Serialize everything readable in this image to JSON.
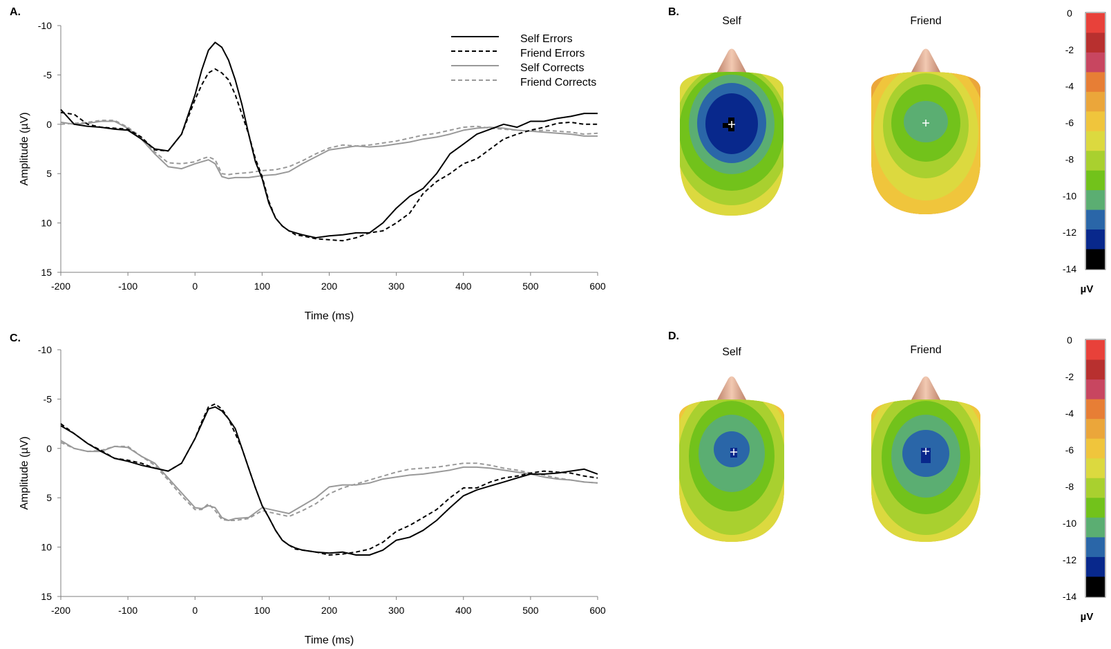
{
  "panel_labels": {
    "a": "A.",
    "b": "B.",
    "c": "C.",
    "d": "D."
  },
  "topo_labels": {
    "b_left": "Self",
    "b_right": "Friend",
    "d_left": "Self",
    "d_right": "Friend"
  },
  "colorbar": {
    "unit": "µV",
    "tick_labels": [
      "0",
      "-2",
      "-4",
      "-6",
      "-8",
      "-10",
      "-12",
      "-14"
    ],
    "colors": [
      "#e8413a",
      "#b8302f",
      "#c84660",
      "#e77e35",
      "#eba63a",
      "#f0c53c",
      "#dcd93f",
      "#a9d02f",
      "#72c21b",
      "#5bae72",
      "#2a66a8",
      "#08288c",
      "#000000"
    ]
  },
  "line_styles": [
    {
      "color": "#000000",
      "dash": "none",
      "width": 2
    },
    {
      "color": "#000000",
      "dash": "6,4",
      "width": 2
    },
    {
      "color": "#999999",
      "dash": "none",
      "width": 2
    },
    {
      "color": "#999999",
      "dash": "6,4",
      "width": 2
    }
  ],
  "chart_data": [
    {
      "type": "line",
      "panel": "A.",
      "xlabel": "Time (ms)",
      "ylabel": "Amplitude (µV)",
      "xlim": [
        -200,
        600
      ],
      "ylim": [
        15,
        -10
      ],
      "y_inverted": true,
      "xticks": [
        "-200",
        "-100",
        "0",
        "100",
        "200",
        "300",
        "400",
        "500",
        "600"
      ],
      "yticks": [
        "-10",
        "-5",
        "0",
        "5",
        "10",
        "15"
      ],
      "legend": [
        "Self Errors",
        "Friend Errors",
        "Self Corrects",
        "Friend Corrects"
      ],
      "legend_position": "top-right",
      "series": [
        {
          "name": "Self Errors",
          "x": [
            -200,
            -180,
            -160,
            -140,
            -120,
            -100,
            -80,
            -60,
            -40,
            -20,
            0,
            10,
            20,
            30,
            40,
            50,
            60,
            70,
            80,
            90,
            100,
            110,
            120,
            130,
            140,
            150,
            160,
            180,
            200,
            220,
            240,
            260,
            280,
            300,
            320,
            340,
            360,
            380,
            400,
            420,
            440,
            460,
            480,
            500,
            520,
            540,
            560,
            580,
            600
          ],
          "y": [
            -1.5,
            0,
            0.2,
            0.3,
            0.5,
            0.6,
            1.5,
            2.5,
            2.7,
            1,
            -3,
            -5.5,
            -7.5,
            -8.3,
            -7.8,
            -6.5,
            -4.5,
            -2,
            1,
            3.8,
            5.5,
            8,
            9.5,
            10.3,
            10.8,
            11,
            11.2,
            11.5,
            11.3,
            11.2,
            11,
            11,
            10,
            8.5,
            7.3,
            6.5,
            5,
            3,
            2,
            1,
            0.5,
            0,
            0.3,
            -0.3,
            -0.3,
            -0.6,
            -0.8,
            -1.1,
            -1.1
          ]
        },
        {
          "name": "Friend Errors",
          "x": [
            -200,
            -180,
            -160,
            -140,
            -120,
            -100,
            -80,
            -60,
            -40,
            -20,
            0,
            10,
            20,
            30,
            40,
            50,
            60,
            70,
            80,
            90,
            100,
            110,
            120,
            130,
            140,
            150,
            160,
            180,
            200,
            220,
            240,
            260,
            280,
            300,
            320,
            340,
            360,
            380,
            400,
            420,
            440,
            460,
            480,
            500,
            520,
            540,
            560,
            580,
            600
          ],
          "y": [
            -1.2,
            -1,
            0,
            0.3,
            0.4,
            0.5,
            1.3,
            2.6,
            2.7,
            1,
            -2.5,
            -4,
            -5.2,
            -5.6,
            -5.2,
            -4.5,
            -3,
            -1,
            1,
            3.5,
            5.3,
            7.8,
            9.5,
            10.3,
            10.8,
            11.2,
            11.3,
            11.6,
            11.7,
            11.8,
            11.5,
            11,
            10.8,
            10,
            9,
            7,
            5.8,
            5,
            4,
            3.5,
            2.5,
            1.5,
            1,
            0.6,
            0.3,
            -0.1,
            -0.2,
            0,
            0
          ]
        },
        {
          "name": "Self Corrects",
          "x": [
            -200,
            -180,
            -160,
            -140,
            -120,
            -100,
            -80,
            -60,
            -40,
            -20,
            0,
            10,
            20,
            30,
            40,
            50,
            60,
            80,
            100,
            120,
            140,
            160,
            180,
            200,
            220,
            240,
            260,
            280,
            300,
            320,
            340,
            360,
            380,
            400,
            420,
            440,
            460,
            480,
            500,
            520,
            540,
            560,
            580,
            600
          ],
          "y": [
            -0.2,
            0,
            -0.1,
            -0.3,
            -0.3,
            0.4,
            1.5,
            3,
            4.3,
            4.5,
            4,
            3.8,
            3.6,
            4,
            5.3,
            5.5,
            5.4,
            5.4,
            5.2,
            5.1,
            4.8,
            4,
            3.3,
            2.6,
            2.4,
            2.2,
            2.3,
            2.2,
            2,
            1.8,
            1.5,
            1.3,
            1,
            0.6,
            0.4,
            0.3,
            0.4,
            0.6,
            0.7,
            0.8,
            0.9,
            1,
            1.2,
            1.2
          ]
        },
        {
          "name": "Friend Corrects",
          "x": [
            -200,
            -180,
            -160,
            -140,
            -120,
            -100,
            -80,
            -60,
            -40,
            -20,
            0,
            10,
            20,
            30,
            40,
            50,
            60,
            80,
            100,
            120,
            140,
            160,
            180,
            200,
            220,
            240,
            260,
            280,
            300,
            320,
            340,
            360,
            380,
            400,
            420,
            440,
            460,
            480,
            500,
            520,
            540,
            560,
            580,
            600
          ],
          "y": [
            0,
            -0.1,
            -0.2,
            -0.4,
            -0.4,
            0.3,
            1.3,
            2.8,
            3.9,
            4,
            3.8,
            3.5,
            3.3,
            3.6,
            5,
            5.1,
            5,
            4.9,
            4.7,
            4.6,
            4.3,
            3.7,
            3,
            2.4,
            2.1,
            2.2,
            2.1,
            1.9,
            1.7,
            1.4,
            1.1,
            0.9,
            0.6,
            0.3,
            0.2,
            0.4,
            0.5,
            0.6,
            0.7,
            0.6,
            0.7,
            0.8,
            1,
            0.9
          ]
        }
      ]
    },
    {
      "type": "line",
      "panel": "C.",
      "xlabel": "Time (ms)",
      "ylabel": "Amplitude (µV)",
      "xlim": [
        -200,
        600
      ],
      "ylim": [
        15,
        -10
      ],
      "y_inverted": true,
      "xticks": [
        "-200",
        "-100",
        "0",
        "100",
        "200",
        "300",
        "400",
        "500",
        "600"
      ],
      "yticks": [
        "-10",
        "-5",
        "0",
        "5",
        "10",
        "15"
      ],
      "series": [
        {
          "name": "Self Errors",
          "x": [
            -200,
            -180,
            -160,
            -140,
            -120,
            -100,
            -80,
            -60,
            -40,
            -20,
            0,
            10,
            20,
            30,
            40,
            50,
            60,
            70,
            80,
            90,
            100,
            110,
            120,
            130,
            140,
            150,
            160,
            180,
            200,
            220,
            240,
            260,
            280,
            300,
            320,
            340,
            360,
            380,
            400,
            420,
            440,
            460,
            480,
            500,
            520,
            540,
            560,
            580,
            600
          ],
          "y": [
            -2.3,
            -1.5,
            -0.5,
            0.3,
            1,
            1.3,
            1.7,
            2,
            2.3,
            1.5,
            -1,
            -2.5,
            -4,
            -4.2,
            -3.8,
            -3,
            -2,
            0,
            2,
            4,
            5.8,
            7,
            8.3,
            9.3,
            9.8,
            10.1,
            10.3,
            10.5,
            10.6,
            10.5,
            10.8,
            10.8,
            10.3,
            9.3,
            9,
            8.3,
            7.3,
            6,
            4.8,
            4.2,
            3.8,
            3.4,
            3,
            2.6,
            2.6,
            2.5,
            2.3,
            2.1,
            2.6
          ]
        },
        {
          "name": "Friend Errors",
          "x": [
            -200,
            -180,
            -160,
            -140,
            -120,
            -100,
            -80,
            -60,
            -40,
            -20,
            0,
            10,
            20,
            30,
            40,
            50,
            60,
            70,
            80,
            90,
            100,
            110,
            120,
            130,
            140,
            150,
            160,
            180,
            200,
            220,
            240,
            260,
            280,
            300,
            320,
            340,
            360,
            380,
            400,
            420,
            440,
            460,
            480,
            500,
            520,
            540,
            560,
            580,
            600
          ],
          "y": [
            -2.5,
            -1.5,
            -0.5,
            0.2,
            1,
            1.2,
            1.5,
            2,
            2.3,
            1.5,
            -1,
            -2.7,
            -4.2,
            -4.5,
            -4,
            -3,
            -1.5,
            0,
            2,
            4,
            5.8,
            7,
            8.3,
            9.3,
            9.8,
            10.2,
            10.3,
            10.5,
            10.8,
            10.7,
            10.5,
            10.2,
            9.5,
            8.4,
            7.8,
            7,
            6.2,
            5,
            4,
            4,
            3.4,
            3,
            2.8,
            2.5,
            2.3,
            2.4,
            2.5,
            2.8,
            3
          ]
        },
        {
          "name": "Self Corrects",
          "x": [
            -200,
            -180,
            -160,
            -140,
            -120,
            -100,
            -80,
            -60,
            -40,
            -20,
            0,
            10,
            20,
            30,
            40,
            50,
            60,
            80,
            100,
            120,
            140,
            160,
            180,
            200,
            220,
            240,
            260,
            280,
            300,
            320,
            340,
            360,
            380,
            400,
            420,
            440,
            460,
            480,
            500,
            520,
            540,
            560,
            580,
            600
          ],
          "y": [
            -0.8,
            0,
            0.3,
            0.3,
            -0.2,
            -0.1,
            0.8,
            1.5,
            3,
            4.5,
            6,
            6.1,
            5.8,
            6,
            7,
            7.3,
            7.1,
            7,
            6,
            6.3,
            6.6,
            5.8,
            5,
            3.9,
            3.7,
            3.7,
            3.5,
            3.1,
            2.9,
            2.7,
            2.6,
            2.4,
            2.2,
            1.9,
            1.9,
            2,
            2.2,
            2.4,
            2.6,
            2.9,
            3.1,
            3.2,
            3.4,
            3.5
          ]
        },
        {
          "name": "Friend Corrects",
          "x": [
            -200,
            -180,
            -160,
            -140,
            -120,
            -100,
            -80,
            -60,
            -40,
            -20,
            0,
            10,
            20,
            30,
            40,
            50,
            60,
            80,
            100,
            120,
            140,
            160,
            180,
            200,
            220,
            240,
            260,
            280,
            300,
            320,
            340,
            360,
            380,
            400,
            420,
            440,
            460,
            480,
            500,
            520,
            540,
            560,
            580,
            600
          ],
          "y": [
            -0.6,
            0,
            0.3,
            0.2,
            -0.2,
            -0.2,
            0.8,
            1.7,
            3.2,
            4.8,
            6.2,
            6.2,
            5.6,
            6.3,
            7.2,
            7.3,
            7.3,
            7.1,
            6.3,
            6.6,
            6.9,
            6.3,
            5.6,
            4.6,
            4,
            3.6,
            3.2,
            2.8,
            2.4,
            2.1,
            2,
            1.9,
            1.7,
            1.5,
            1.5,
            1.7,
            2,
            2.2,
            2.5,
            2.7,
            3,
            3.2,
            3.4,
            3.5
          ]
        }
      ]
    }
  ]
}
